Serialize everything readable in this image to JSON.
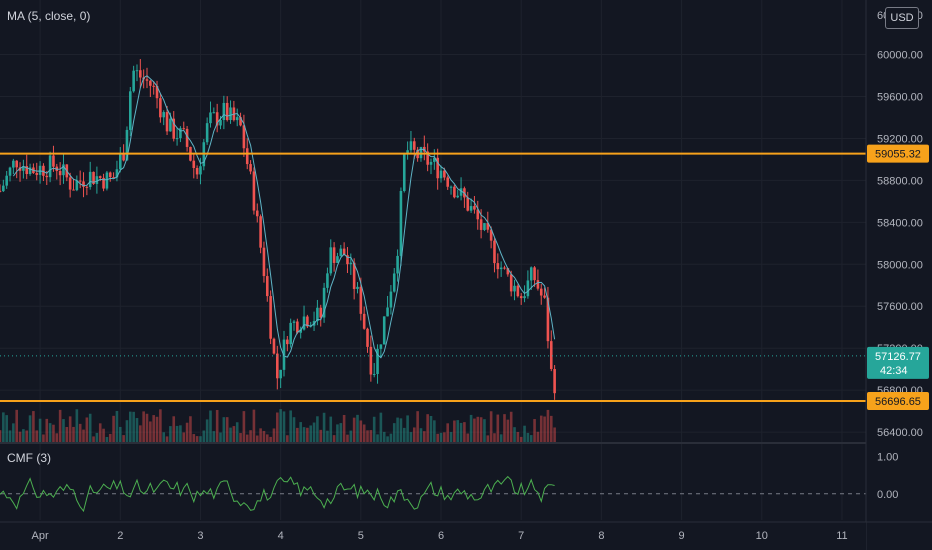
{
  "legends": {
    "ma": "MA (5, close, 0)",
    "cmf": "CMF (3)"
  },
  "currency": "USD",
  "price_axis": {
    "ticks": [
      "60000.00",
      "59600.00",
      "59200.00",
      "58800.00",
      "58400.00",
      "58000.00",
      "57600.00",
      "57200.00",
      "56800.00",
      "56400.00"
    ],
    "top_cut_label": "60400.00",
    "min": 56296,
    "max": 60520
  },
  "cmf_axis": {
    "ticks": [
      "1.00",
      "0.00"
    ],
    "min": -0.7,
    "max": 1.3
  },
  "time_axis": {
    "labels": [
      "Apr",
      "2",
      "3",
      "4",
      "5",
      "6",
      "7",
      "8",
      "9",
      "10",
      "11"
    ],
    "day_start": 0.5,
    "day_end": 11.3
  },
  "levels": [
    {
      "name": "resistance",
      "price": 59055.32,
      "label": "59055.32"
    },
    {
      "name": "support",
      "price": 56696.65,
      "label": "56696.65"
    }
  ],
  "last_price": {
    "price": 57126.77,
    "label": "57126.77",
    "countdown": "42:34"
  },
  "colors": {
    "background": "#131722",
    "grid": "#1e222d",
    "up": "#26a69a",
    "down": "#ef5350",
    "ma": "#5fb4c6",
    "level": "#f7a21b",
    "cmf": "#4caf50",
    "text": "#b2b5be"
  },
  "chart_data": {
    "type": "candlestick",
    "series": [
      {
        "name": "MA (5, close, 0)",
        "type": "line"
      },
      {
        "name": "CMF (3)",
        "type": "line"
      }
    ],
    "approx_closes": [
      {
        "x": 0.5,
        "y": 58700
      },
      {
        "x": 0.7,
        "y": 59000
      },
      {
        "x": 0.9,
        "y": 58900
      },
      {
        "x": 1.2,
        "y": 58950
      },
      {
        "x": 1.4,
        "y": 58750
      },
      {
        "x": 1.6,
        "y": 58850
      },
      {
        "x": 1.9,
        "y": 58800
      },
      {
        "x": 2.05,
        "y": 59100
      },
      {
        "x": 2.15,
        "y": 59850
      },
      {
        "x": 2.4,
        "y": 59700
      },
      {
        "x": 2.6,
        "y": 59300
      },
      {
        "x": 2.8,
        "y": 59200
      },
      {
        "x": 2.95,
        "y": 58850
      },
      {
        "x": 3.1,
        "y": 59350
      },
      {
        "x": 3.3,
        "y": 59450
      },
      {
        "x": 3.5,
        "y": 59300
      },
      {
        "x": 3.65,
        "y": 58700
      },
      {
        "x": 3.8,
        "y": 57900
      },
      {
        "x": 3.95,
        "y": 56900
      },
      {
        "x": 4.1,
        "y": 57400
      },
      {
        "x": 4.3,
        "y": 57500
      },
      {
        "x": 4.5,
        "y": 57500
      },
      {
        "x": 4.6,
        "y": 58100
      },
      {
        "x": 4.8,
        "y": 58100
      },
      {
        "x": 5.0,
        "y": 57600
      },
      {
        "x": 5.15,
        "y": 56950
      },
      {
        "x": 5.3,
        "y": 57500
      },
      {
        "x": 5.45,
        "y": 58100
      },
      {
        "x": 5.55,
        "y": 59100
      },
      {
        "x": 5.8,
        "y": 59000
      },
      {
        "x": 6.0,
        "y": 58900
      },
      {
        "x": 6.2,
        "y": 58700
      },
      {
        "x": 6.4,
        "y": 58500
      },
      {
        "x": 6.6,
        "y": 58200
      },
      {
        "x": 6.8,
        "y": 57900
      },
      {
        "x": 7.0,
        "y": 57700
      },
      {
        "x": 7.15,
        "y": 57900
      },
      {
        "x": 7.3,
        "y": 57600
      },
      {
        "x": 7.4,
        "y": 56750
      },
      {
        "x": 7.45,
        "y": 57126.77
      }
    ],
    "ylim": [
      56296,
      60520
    ],
    "xlabel": "",
    "ylabel": "",
    "annotations": [
      {
        "label": "59055.32"
      },
      {
        "label": "56696.65"
      },
      {
        "label": "57126.77"
      }
    ]
  }
}
